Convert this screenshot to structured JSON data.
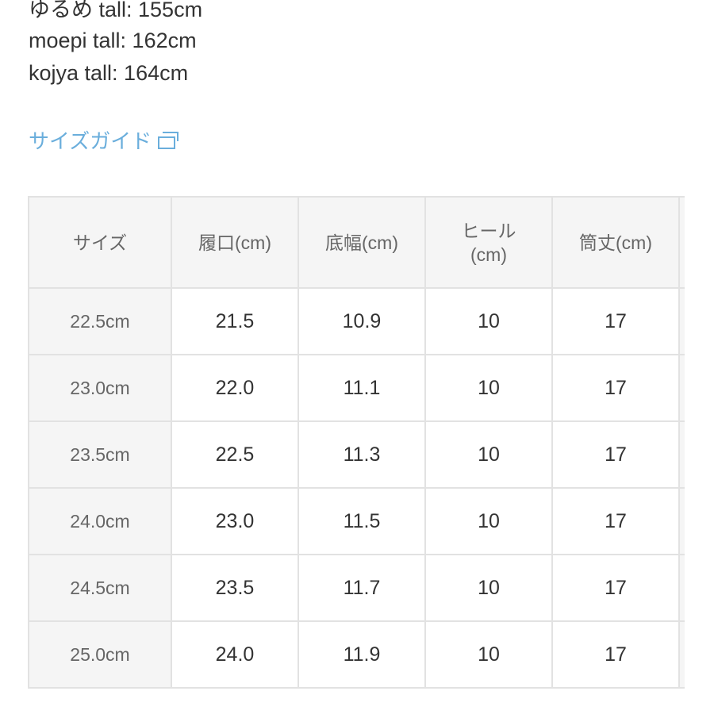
{
  "model_heights": [
    "ゆるめ tall: 155cm",
    "moepi tall: 162cm",
    "kojya tall: 164cm"
  ],
  "size_guide_link": {
    "label": "サイズガイド",
    "icon": "external-window-icon",
    "color": "#6aaedc"
  },
  "table": {
    "headers": [
      "サイズ",
      "履口(cm)",
      "底幅(cm)",
      "ヒール(cm)",
      "筒丈(cm)"
    ],
    "rows": [
      [
        "22.5cm",
        "21.5",
        "10.9",
        "10",
        "17"
      ],
      [
        "23.0cm",
        "22.0",
        "11.1",
        "10",
        "17"
      ],
      [
        "23.5cm",
        "22.5",
        "11.3",
        "10",
        "17"
      ],
      [
        "24.0cm",
        "23.0",
        "11.5",
        "10",
        "17"
      ],
      [
        "24.5cm",
        "23.5",
        "11.7",
        "10",
        "17"
      ],
      [
        "25.0cm",
        "24.0",
        "11.9",
        "10",
        "17"
      ]
    ]
  }
}
